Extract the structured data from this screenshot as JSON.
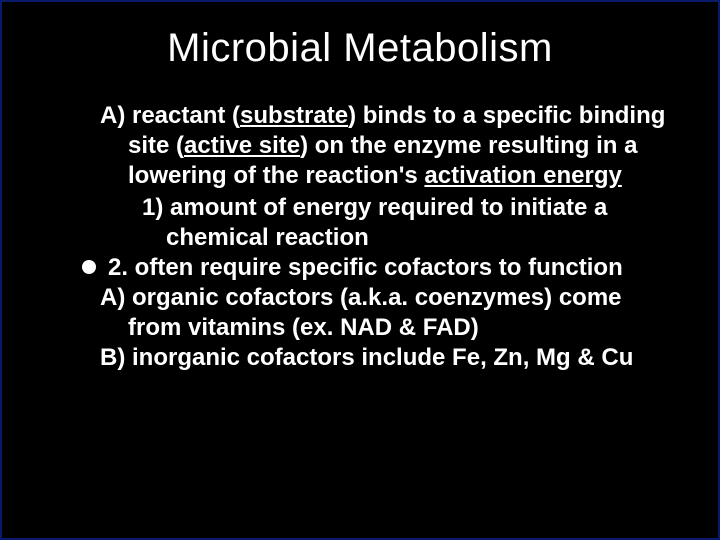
{
  "slide": {
    "title": "Microbial Metabolism",
    "lineA_pre": "A) reactant (",
    "lineA_u1": "substrate",
    "lineA_mid1": ") binds to a specific binding site (",
    "lineA_u2": "active site",
    "lineA_mid2": ") on the enzyme resulting in a lowering of the reaction's ",
    "lineA_u3": "activation energy",
    "line1": "1) amount of energy required to initiate a chemical reaction",
    "line2": "2. often require specific cofactors to function",
    "line2A": "A) organic cofactors (a.k.a. coenzymes) come from vitamins (ex. NAD & FAD)",
    "line2B": "B) inorganic cofactors include Fe, Zn, Mg & Cu",
    "colors": {
      "background": "#000000",
      "text": "#ffffff",
      "border": "#0a1a6a"
    },
    "typography": {
      "title_fontsize": 40,
      "body_fontsize": 24,
      "font_family": "Arial",
      "body_weight": "bold"
    }
  }
}
